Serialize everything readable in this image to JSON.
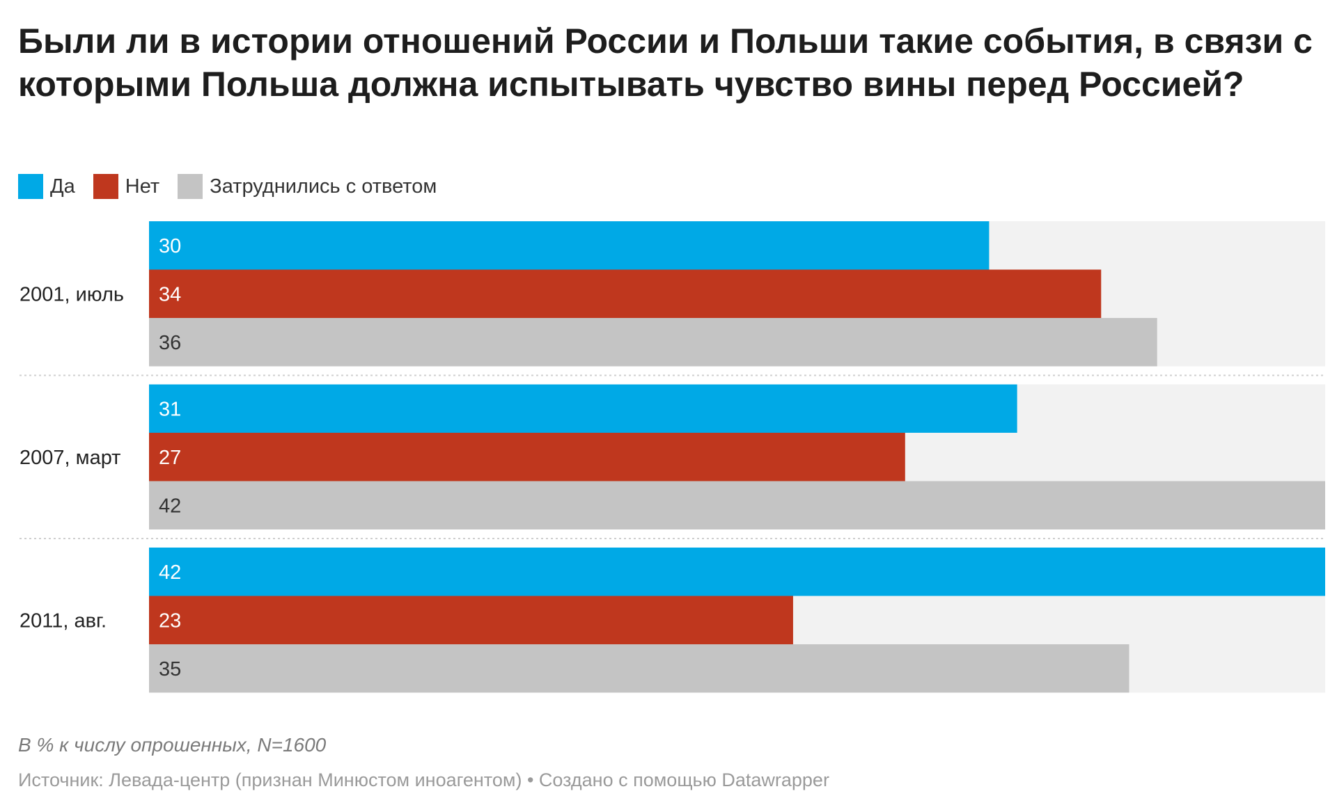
{
  "title": "Были ли в истории отношений России и Польши такие события, в связи с которыми Польша должна испытывать чувство вины перед Россией?",
  "footer": {
    "note": "В % к числу опрошенных, N=1600",
    "source": "Источник: Левада-центр (признан Минюстом иноагентом)",
    "separator": " • ",
    "credit": "Создано с помощью Datawrapper"
  },
  "chart_data": {
    "type": "bar",
    "orientation": "horizontal",
    "title": "Были ли в истории отношений России и Польши такие события, в связи с которыми Польша должна испытывать чувство вины перед Россией?",
    "categories": [
      "2001, июль",
      "2007, март",
      "2011, авг."
    ],
    "series": [
      {
        "name": "Да",
        "color": "#00a9e6",
        "values": [
          30,
          31,
          42
        ]
      },
      {
        "name": "Нет",
        "color": "#bf371e",
        "values": [
          34,
          27,
          23
        ]
      },
      {
        "name": "Затруднились с ответом",
        "color": "#c4c4c4",
        "values": [
          36,
          42,
          35
        ]
      }
    ],
    "xlim": [
      0,
      42
    ],
    "legend": "top-left",
    "grid": false,
    "xlabel": "",
    "ylabel": "",
    "value_label_colors": [
      "#ffffff",
      "#ffffff",
      "#333333"
    ],
    "track_color": "#f2f2f2"
  }
}
